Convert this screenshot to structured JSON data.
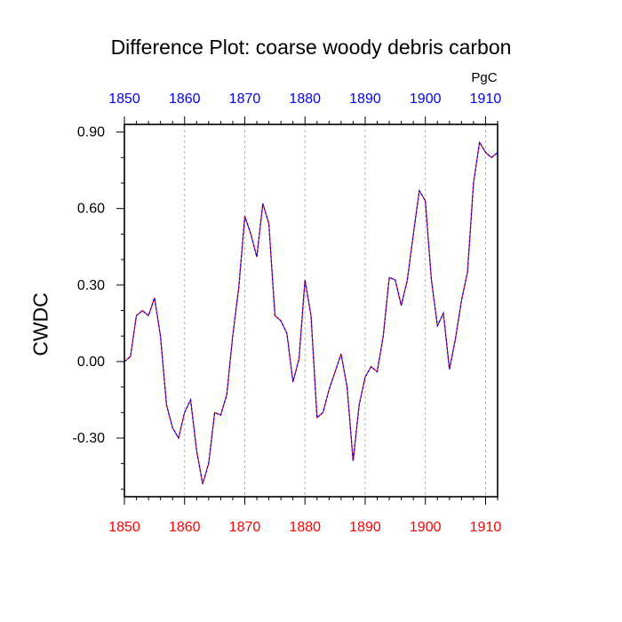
{
  "chart_data": {
    "type": "line",
    "title": "Difference Plot: coarse woody debris carbon",
    "units": "PgC",
    "ylabel": "CWDC",
    "xlabel": "",
    "xlim": [
      1850,
      1912
    ],
    "ylim": [
      -0.53,
      0.93
    ],
    "x_ticks": [
      "1850",
      "1860",
      "1870",
      "1880",
      "1890",
      "1900",
      "1910"
    ],
    "y_ticks": [
      "0.90",
      "0.60",
      "0.30",
      "0.00",
      "-0.30"
    ],
    "grid": "vertical dashed lines at major x ticks",
    "colors": {
      "bottom_ticks": "#ff0000",
      "top_ticks": "#0000ff",
      "line_outer": "#ff0000",
      "line_inner": "#0000ff"
    },
    "series": [
      {
        "x": [
          1850,
          1851,
          1852,
          1853,
          1854,
          1855,
          1856,
          1857,
          1858,
          1859,
          1860,
          1861,
          1862,
          1863,
          1864,
          1865,
          1866,
          1867,
          1868,
          1869,
          1870,
          1871,
          1872,
          1873,
          1874,
          1875,
          1876,
          1877,
          1878,
          1879,
          1880,
          1881,
          1882,
          1883,
          1884,
          1885,
          1886,
          1887,
          1888,
          1889,
          1890,
          1891,
          1892,
          1893,
          1894,
          1895,
          1896,
          1897,
          1898,
          1899,
          1900,
          1901,
          1902,
          1903,
          1904,
          1905,
          1906,
          1907,
          1908,
          1909,
          1910,
          1911,
          1912
        ],
        "values": [
          0.0,
          0.02,
          0.18,
          0.2,
          0.18,
          0.25,
          0.1,
          -0.17,
          -0.26,
          -0.3,
          -0.2,
          -0.15,
          -0.35,
          -0.48,
          -0.4,
          -0.2,
          -0.21,
          -0.13,
          0.1,
          0.29,
          0.57,
          0.5,
          0.41,
          0.62,
          0.54,
          0.18,
          0.16,
          0.11,
          -0.08,
          0.01,
          0.32,
          0.18,
          -0.22,
          -0.2,
          -0.11,
          -0.04,
          0.03,
          -0.1,
          -0.39,
          -0.17,
          -0.06,
          -0.02,
          -0.04,
          0.1,
          0.33,
          0.32,
          0.22,
          0.32,
          0.5,
          0.67,
          0.63,
          0.32,
          0.14,
          0.19,
          -0.03,
          0.09,
          0.24,
          0.35,
          0.7,
          0.86,
          0.82,
          0.8,
          0.82
        ]
      }
    ]
  }
}
